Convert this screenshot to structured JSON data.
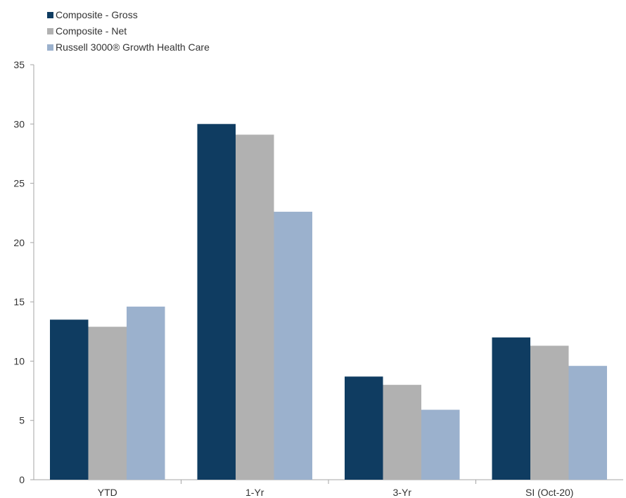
{
  "chart_data": {
    "type": "bar",
    "title": "",
    "xlabel": "",
    "ylabel": "",
    "categories": [
      "YTD",
      "1-Yr",
      "3-Yr",
      "SI (Oct-20)"
    ],
    "series": [
      {
        "name": "Composite - Gross",
        "color": "#0f3c61",
        "values": [
          13.5,
          30.0,
          8.7,
          12.0
        ]
      },
      {
        "name": "Composite - Net",
        "color": "#b1b1b1",
        "values": [
          12.9,
          29.1,
          8.0,
          11.3
        ]
      },
      {
        "name": "Russell 3000® Growth Health Care",
        "color": "#9bb1cd",
        "values": [
          14.6,
          22.6,
          5.9,
          9.6
        ]
      }
    ],
    "ylim": [
      0,
      35
    ],
    "yticks": [
      "0",
      "5",
      "10",
      "15",
      "20",
      "25",
      "30",
      "35"
    ],
    "grid": false,
    "legend_position": "top-left"
  }
}
